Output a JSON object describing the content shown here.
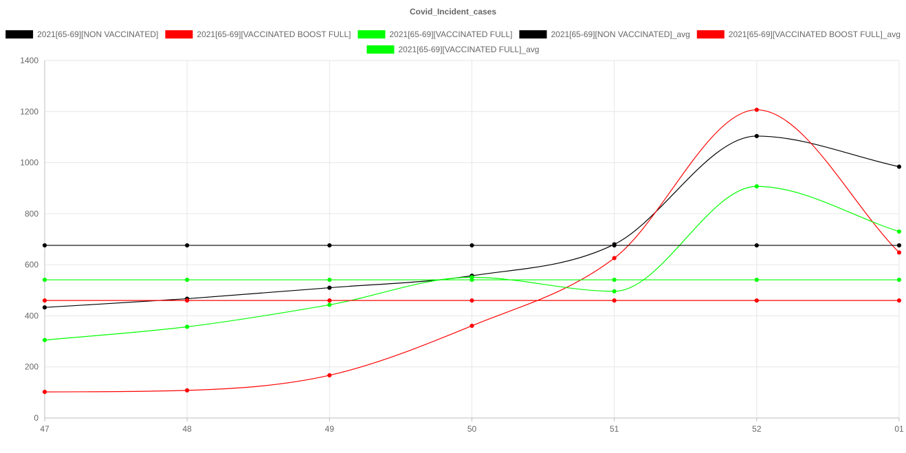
{
  "chart_data": {
    "type": "line",
    "title": "Covid_Incident_cases",
    "categories": [
      "47",
      "48",
      "49",
      "50",
      "51",
      "52",
      "01"
    ],
    "ylim": [
      0,
      1400
    ],
    "yticks": [
      0,
      200,
      400,
      600,
      800,
      1000,
      1200,
      1400
    ],
    "grid": true,
    "legend_position": "top",
    "series": [
      {
        "name": "2021[65-69][NON VACCINATED]",
        "color": "#000000",
        "smooth": true,
        "values": [
          433,
          467,
          510,
          557,
          680,
          1104,
          984
        ]
      },
      {
        "name": "2021[65-69][VACCINATED BOOST FULL]",
        "color": "#ff0000",
        "smooth": true,
        "values": [
          102,
          108,
          167,
          361,
          626,
          1207,
          648
        ]
      },
      {
        "name": "2021[65-69][VACCINATED FULL]",
        "color": "#00ff00",
        "smooth": true,
        "values": [
          305,
          357,
          443,
          551,
          496,
          907,
          730
        ]
      },
      {
        "name": "2021[65-69][NON VACCINATED]_avg",
        "color": "#000000",
        "smooth": false,
        "values": [
          676,
          676,
          676,
          676,
          676,
          676,
          676
        ]
      },
      {
        "name": "2021[65-69][VACCINATED BOOST FULL]_avg",
        "color": "#ff0000",
        "smooth": false,
        "values": [
          460,
          460,
          460,
          460,
          460,
          460,
          460
        ]
      },
      {
        "name": "2021[65-69][VACCINATED FULL]_avg",
        "color": "#00ff00",
        "smooth": false,
        "values": [
          541,
          541,
          541,
          541,
          541,
          541,
          541
        ]
      }
    ]
  }
}
